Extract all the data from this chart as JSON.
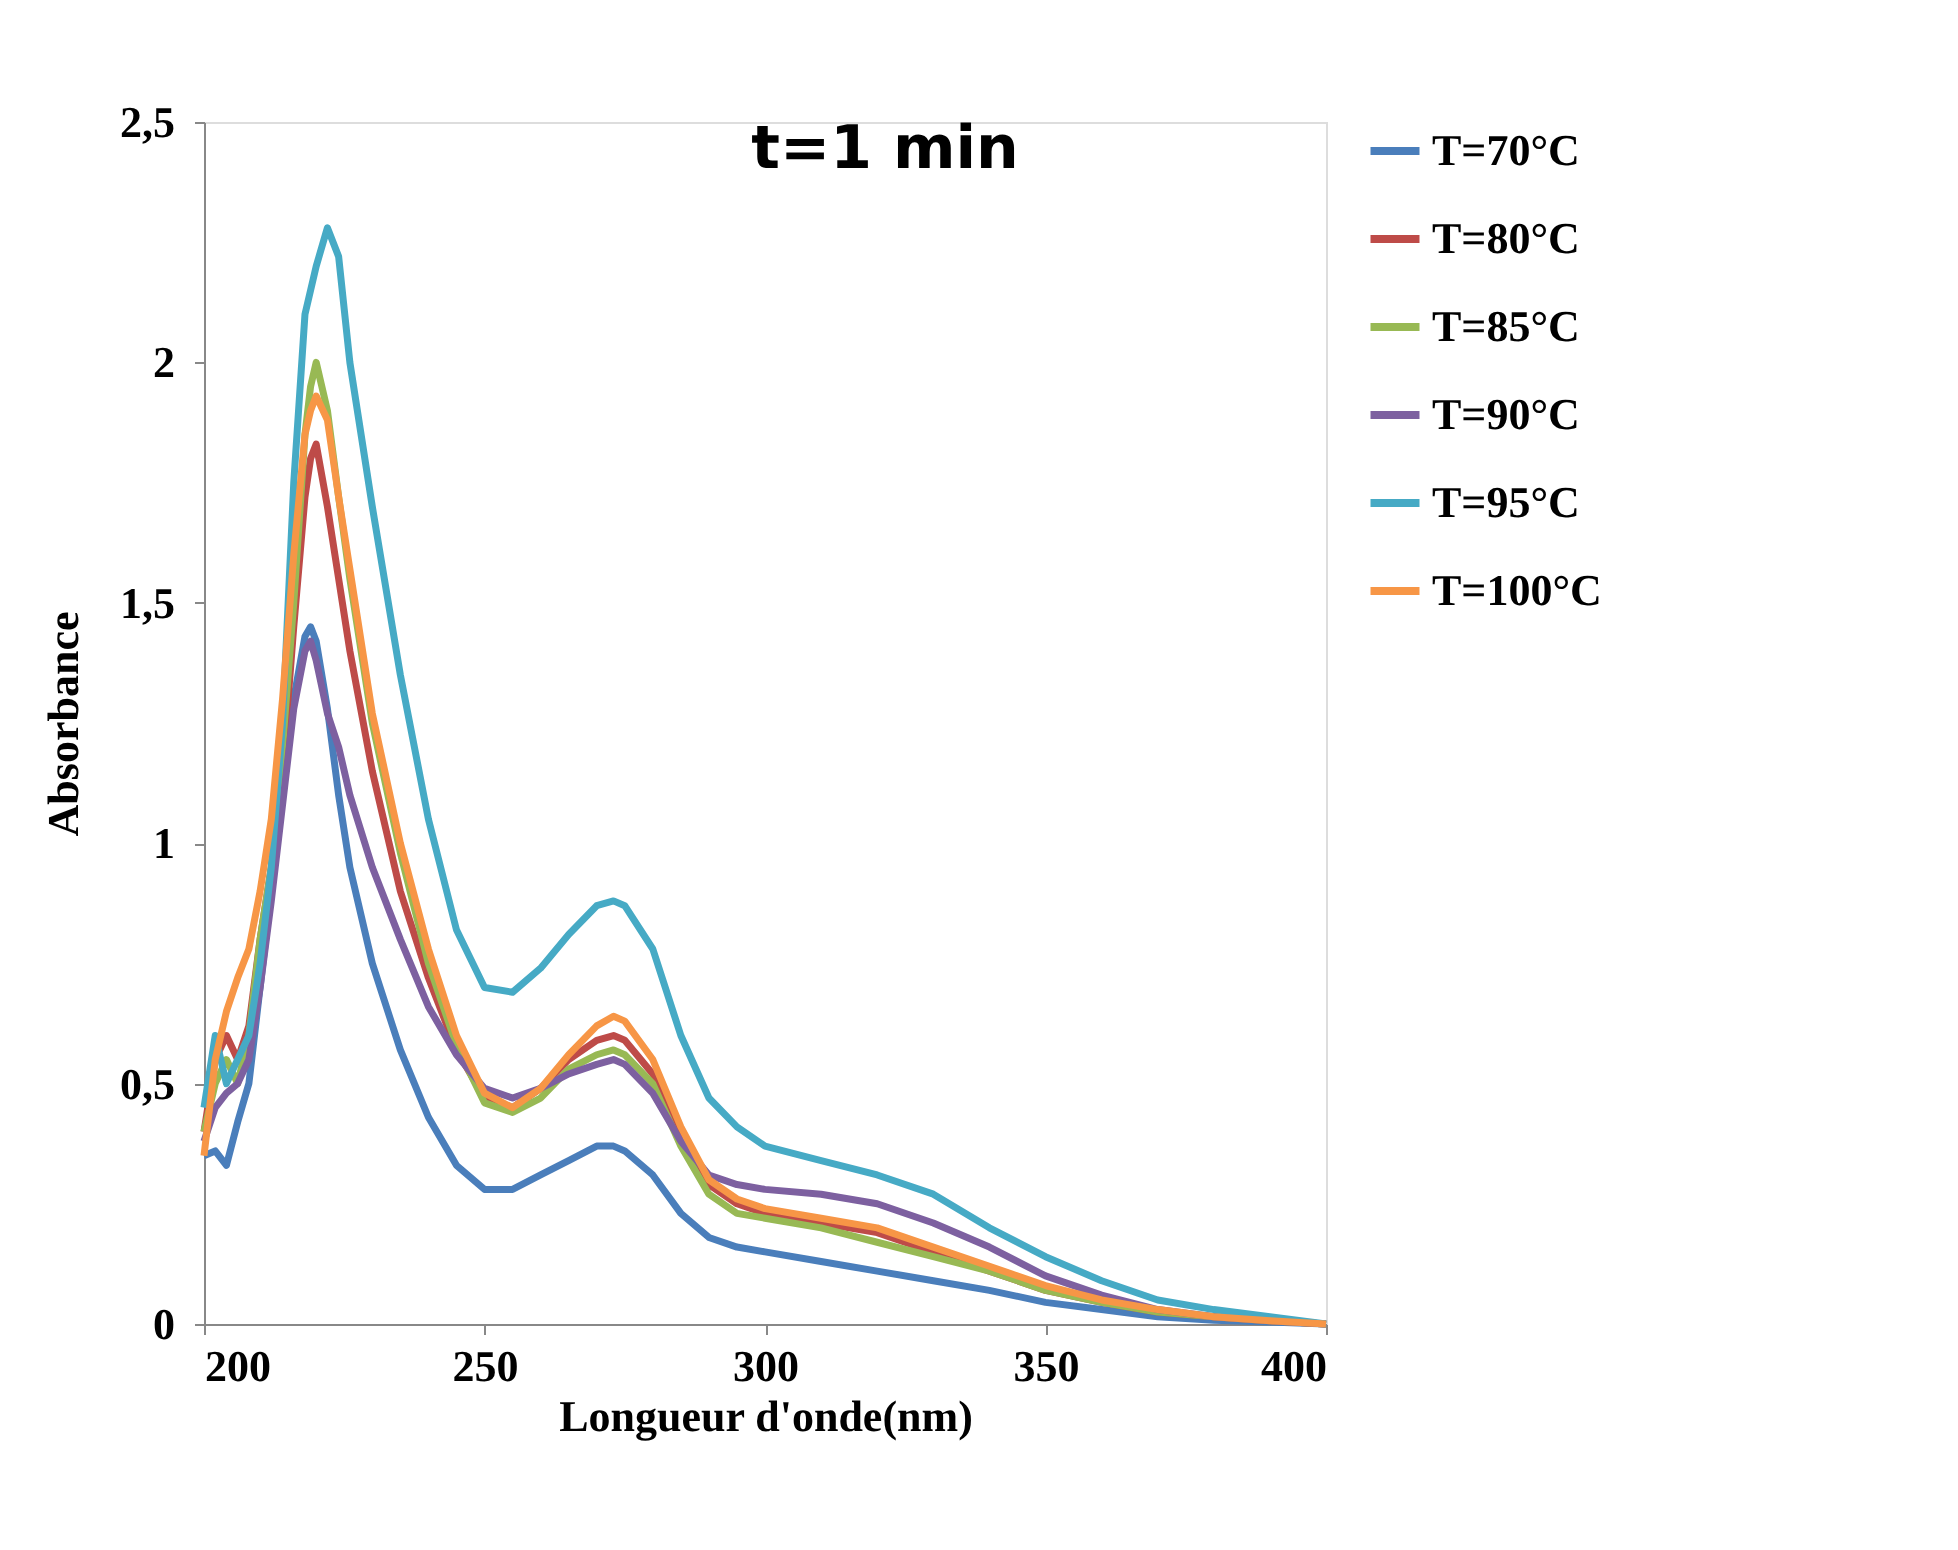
{
  "chart_data": {
    "type": "line",
    "title": "t=1 min",
    "xlabel": "Longueur d'onde(nm)",
    "ylabel": "Absorbance",
    "x": [
      200,
      202,
      204,
      206,
      208,
      210,
      212,
      214,
      216,
      218,
      219,
      220,
      222,
      224,
      226,
      230,
      235,
      240,
      245,
      250,
      255,
      260,
      265,
      270,
      273,
      275,
      280,
      285,
      290,
      295,
      300,
      310,
      320,
      330,
      340,
      350,
      360,
      370,
      380,
      390,
      400
    ],
    "series": [
      {
        "name": "T=70°C",
        "color": "#4a7ebb",
        "values": [
          0.35,
          0.36,
          0.33,
          0.42,
          0.5,
          0.7,
          0.9,
          1.1,
          1.3,
          1.43,
          1.45,
          1.42,
          1.28,
          1.1,
          0.95,
          0.75,
          0.57,
          0.43,
          0.33,
          0.28,
          0.28,
          0.31,
          0.34,
          0.37,
          0.37,
          0.36,
          0.31,
          0.23,
          0.18,
          0.16,
          0.15,
          0.13,
          0.11,
          0.09,
          0.07,
          0.045,
          0.03,
          0.015,
          0.008,
          0.004,
          0
        ]
      },
      {
        "name": "T=80°C",
        "color": "#be4b48",
        "values": [
          0.4,
          0.55,
          0.6,
          0.55,
          0.62,
          0.8,
          0.95,
          1.15,
          1.45,
          1.72,
          1.8,
          1.83,
          1.7,
          1.55,
          1.4,
          1.15,
          0.9,
          0.72,
          0.57,
          0.47,
          0.45,
          0.49,
          0.55,
          0.59,
          0.6,
          0.59,
          0.52,
          0.38,
          0.29,
          0.25,
          0.23,
          0.21,
          0.19,
          0.15,
          0.11,
          0.07,
          0.045,
          0.025,
          0.015,
          0.007,
          0
        ]
      },
      {
        "name": "T=85°C",
        "color": "#98b954",
        "values": [
          0.4,
          0.5,
          0.55,
          0.5,
          0.6,
          0.8,
          0.95,
          1.2,
          1.5,
          1.85,
          1.95,
          2.0,
          1.9,
          1.72,
          1.55,
          1.25,
          0.98,
          0.75,
          0.58,
          0.46,
          0.44,
          0.47,
          0.53,
          0.56,
          0.57,
          0.56,
          0.5,
          0.37,
          0.27,
          0.23,
          0.22,
          0.2,
          0.17,
          0.14,
          0.11,
          0.07,
          0.045,
          0.025,
          0.015,
          0.007,
          0
        ]
      },
      {
        "name": "T=90°C",
        "color": "#7d60a0",
        "values": [
          0.38,
          0.45,
          0.48,
          0.5,
          0.55,
          0.7,
          0.88,
          1.08,
          1.28,
          1.4,
          1.42,
          1.38,
          1.27,
          1.2,
          1.1,
          0.95,
          0.8,
          0.66,
          0.56,
          0.49,
          0.47,
          0.49,
          0.52,
          0.54,
          0.55,
          0.54,
          0.48,
          0.38,
          0.31,
          0.29,
          0.28,
          0.27,
          0.25,
          0.21,
          0.16,
          0.1,
          0.06,
          0.03,
          0.015,
          0.007,
          0
        ]
      },
      {
        "name": "T=95°C",
        "color": "#46aac5",
        "values": [
          0.45,
          0.6,
          0.5,
          0.55,
          0.6,
          0.75,
          0.95,
          1.25,
          1.75,
          2.1,
          2.15,
          2.2,
          2.28,
          2.22,
          2.0,
          1.7,
          1.35,
          1.05,
          0.82,
          0.7,
          0.69,
          0.74,
          0.81,
          0.87,
          0.88,
          0.87,
          0.78,
          0.6,
          0.47,
          0.41,
          0.37,
          0.34,
          0.31,
          0.27,
          0.2,
          0.14,
          0.09,
          0.05,
          0.03,
          0.015,
          0
        ]
      },
      {
        "name": "T=100°C",
        "color": "#f79646",
        "values": [
          0.35,
          0.55,
          0.65,
          0.72,
          0.78,
          0.9,
          1.05,
          1.3,
          1.6,
          1.85,
          1.9,
          1.93,
          1.88,
          1.72,
          1.57,
          1.27,
          1.0,
          0.78,
          0.6,
          0.48,
          0.45,
          0.49,
          0.56,
          0.62,
          0.64,
          0.63,
          0.55,
          0.41,
          0.3,
          0.26,
          0.24,
          0.22,
          0.2,
          0.16,
          0.12,
          0.08,
          0.05,
          0.03,
          0.015,
          0.007,
          0
        ]
      }
    ],
    "xlim": [
      200,
      400
    ],
    "xticks": [
      200,
      250,
      300,
      350,
      400
    ],
    "ylim": [
      0,
      2.5
    ],
    "yticks": [
      0,
      {
        "value": 0.5,
        "label": "0,5"
      },
      1,
      {
        "value": 1.5,
        "label": "1,5"
      },
      2,
      {
        "value": 2.5,
        "label": "2,5"
      }
    ],
    "legend": "right",
    "grid": false,
    "marker": "none",
    "line_style": "solid"
  }
}
